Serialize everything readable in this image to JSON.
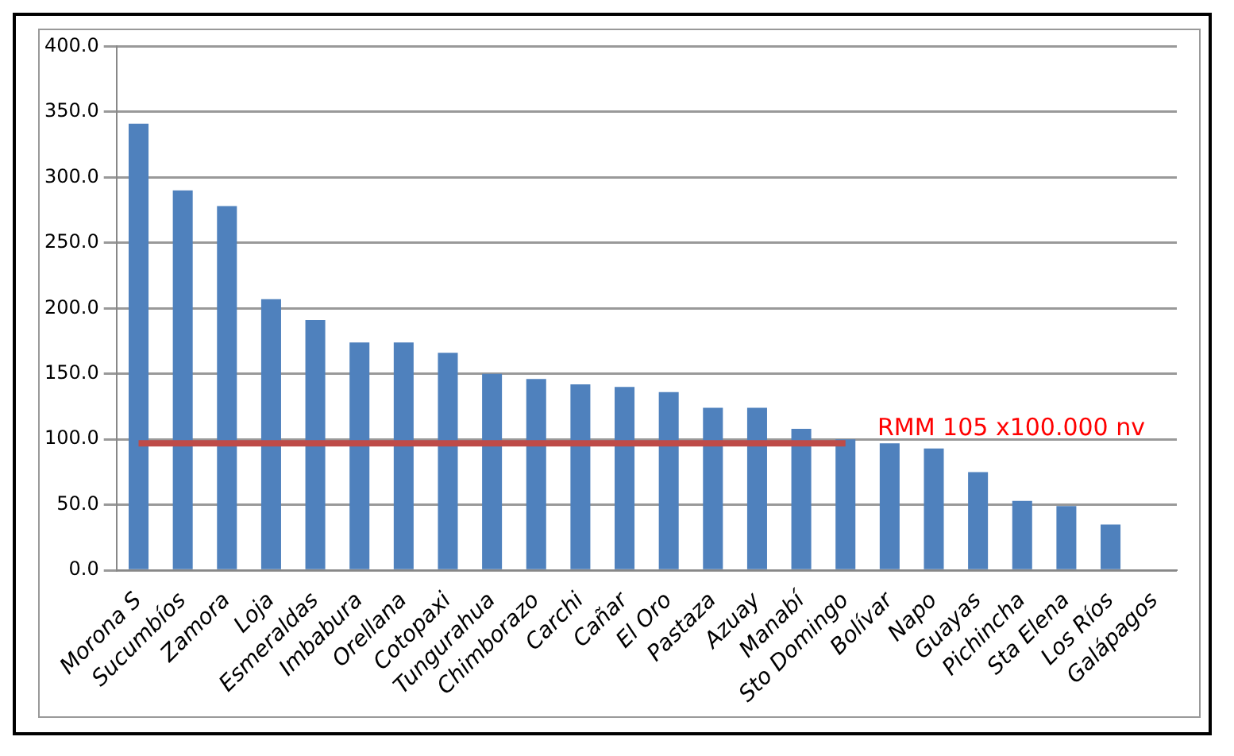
{
  "chart_data": {
    "type": "bar",
    "categories": [
      "Morona S",
      "Sucumbíos",
      "Zamora",
      "Loja",
      "Esmeraldas",
      "Imbabura",
      "Orellana",
      "Cotopaxi",
      "Tungurahua",
      "Chimborazo",
      "Carchi",
      "Cañar",
      "El Oro",
      "Pastaza",
      "Azuay",
      "Manabí",
      "Sto Domingo",
      "Bolívar",
      "Napo",
      "Guayas",
      "Pichincha",
      "Sta Elena",
      "Los Ríos",
      "Galápagos"
    ],
    "series": [
      {
        "color": "#4f81bd",
        "values": [
          341,
          290,
          278,
          207,
          191,
          174,
          174,
          166,
          150,
          146,
          142,
          140,
          136,
          124,
          124,
          108,
          100,
          97,
          93,
          75,
          53,
          49,
          35,
          0
        ]
      },
      {
        "type": "line",
        "color": "#be4b48",
        "values": [
          97,
          97,
          97,
          97,
          97,
          97,
          97,
          97,
          97,
          97,
          97,
          97,
          97,
          97,
          97,
          97,
          97,
          null,
          null,
          null,
          null,
          null,
          null,
          null
        ]
      }
    ],
    "annotations": [
      "RMM 105 x100.000 nv"
    ],
    "ylim": [
      0,
      400
    ],
    "yticks": [
      {
        "value": 0,
        "label": "0.0"
      },
      {
        "value": 50,
        "label": "50.0"
      },
      {
        "value": 100,
        "label": "100.0"
      },
      {
        "value": 150,
        "label": "150.0"
      },
      {
        "value": 200,
        "label": "200.0"
      },
      {
        "value": 250,
        "label": "250.0"
      },
      {
        "value": 300,
        "label": "300.0"
      },
      {
        "value": 350,
        "label": "350.0"
      },
      {
        "value": 400,
        "label": "400.0"
      }
    ],
    "grid": "y",
    "legend": false
  }
}
